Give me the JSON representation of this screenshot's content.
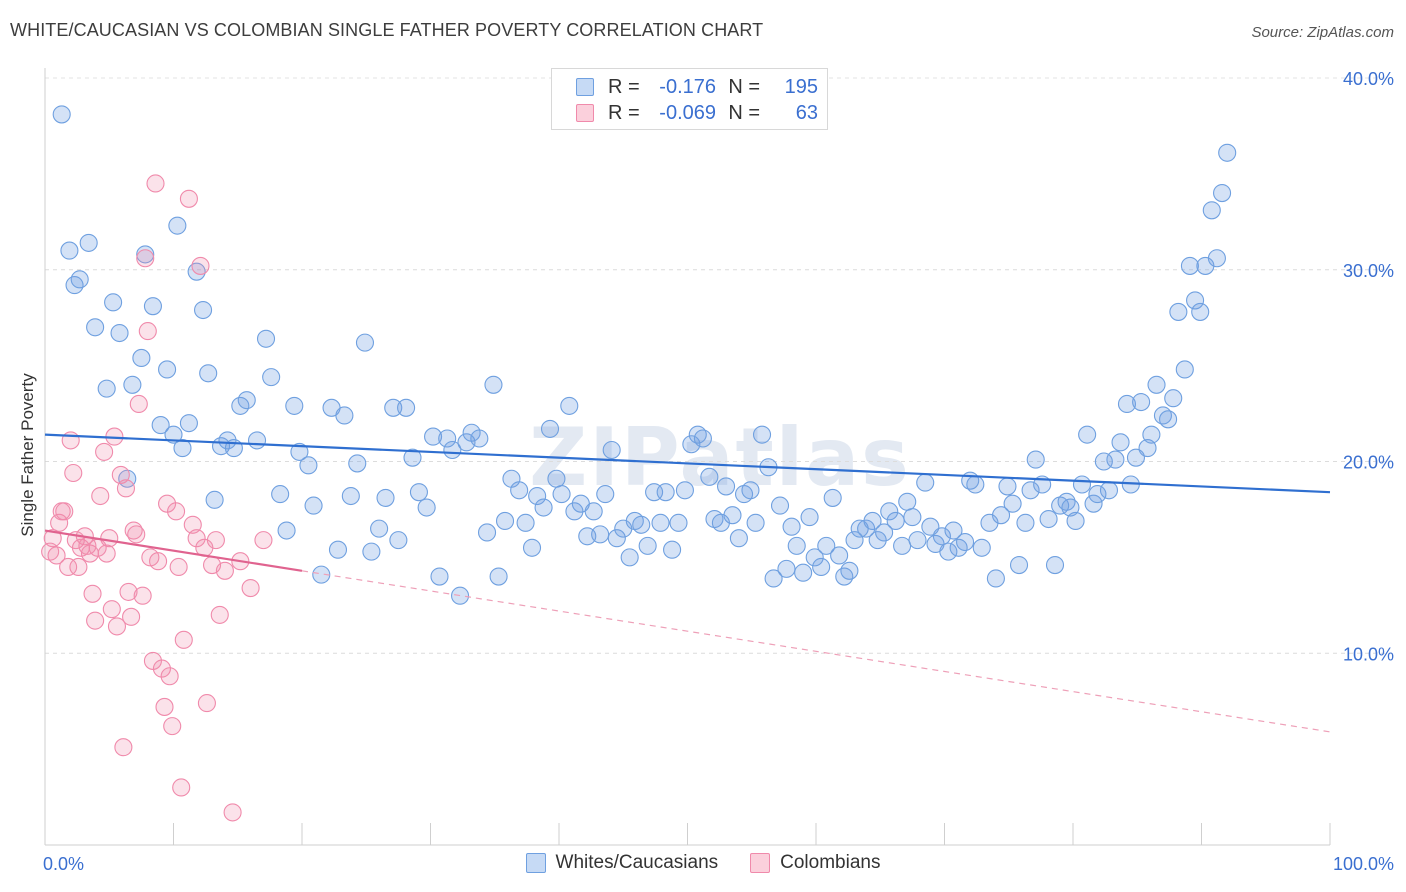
{
  "title": "WHITE/CAUCASIAN VS COLOMBIAN SINGLE FATHER POVERTY CORRELATION CHART",
  "source": "Source: ZipAtlas.com",
  "watermark": "ZIPatlas",
  "legend": {
    "rows": [
      {
        "r_label": "R =",
        "r_value": "-0.176",
        "n_label": "N =",
        "n_value": "195",
        "color": "#6fa0e0"
      },
      {
        "r_label": "R =",
        "r_value": "-0.069",
        "n_label": "N =",
        "n_value": "63",
        "color": "#f08aab"
      }
    ]
  },
  "bottom_legend": [
    "Whites/Caucasians",
    "Colombians"
  ],
  "chart_data": {
    "type": "scatter",
    "title": "WHITE/CAUCASIAN VS COLOMBIAN SINGLE FATHER POVERTY CORRELATION CHART",
    "xlabel": "",
    "ylabel": "Single Father Poverty",
    "xlim": [
      0,
      100
    ],
    "ylim": [
      0,
      40
    ],
    "x_tick_labels": [
      "0.0%",
      "100.0%"
    ],
    "y_ticks": [
      10,
      20,
      30,
      40
    ],
    "y_tick_labels": [
      "10.0%",
      "20.0%",
      "30.0%",
      "40.0%"
    ],
    "grid": true,
    "legend_position": "top-center",
    "series": [
      {
        "name": "Whites/Caucasians",
        "color": "#6fa0e0",
        "trend": {
          "x": [
            0,
            100
          ],
          "y": [
            21.4,
            18.4
          ],
          "style": "solid"
        },
        "points": [
          [
            1.3,
            38.1
          ],
          [
            1.9,
            31.0
          ],
          [
            2.3,
            29.2
          ],
          [
            2.7,
            29.5
          ],
          [
            3.4,
            31.4
          ],
          [
            3.9,
            27.0
          ],
          [
            4.8,
            23.8
          ],
          [
            5.3,
            28.3
          ],
          [
            5.8,
            26.7
          ],
          [
            6.4,
            19.1
          ],
          [
            6.8,
            24.0
          ],
          [
            7.5,
            25.4
          ],
          [
            7.8,
            30.8
          ],
          [
            8.4,
            28.1
          ],
          [
            9.0,
            21.9
          ],
          [
            9.5,
            24.8
          ],
          [
            10.0,
            21.4
          ],
          [
            10.3,
            32.3
          ],
          [
            10.7,
            20.7
          ],
          [
            11.2,
            22.0
          ],
          [
            11.8,
            29.9
          ],
          [
            12.3,
            27.9
          ],
          [
            12.7,
            24.6
          ],
          [
            13.2,
            18.0
          ],
          [
            13.7,
            20.8
          ],
          [
            14.2,
            21.1
          ],
          [
            14.7,
            20.7
          ],
          [
            15.2,
            22.9
          ],
          [
            15.7,
            23.2
          ],
          [
            16.5,
            21.1
          ],
          [
            17.2,
            26.4
          ],
          [
            17.6,
            24.4
          ],
          [
            18.3,
            18.3
          ],
          [
            18.8,
            16.4
          ],
          [
            19.4,
            22.9
          ],
          [
            19.8,
            20.5
          ],
          [
            20.5,
            19.8
          ],
          [
            20.9,
            17.7
          ],
          [
            21.5,
            14.1
          ],
          [
            22.3,
            22.8
          ],
          [
            22.8,
            15.4
          ],
          [
            23.3,
            22.4
          ],
          [
            23.8,
            18.2
          ],
          [
            24.3,
            19.9
          ],
          [
            24.9,
            26.2
          ],
          [
            25.4,
            15.3
          ],
          [
            26.0,
            16.5
          ],
          [
            26.5,
            18.1
          ],
          [
            27.1,
            22.8
          ],
          [
            27.5,
            15.9
          ],
          [
            28.1,
            22.8
          ],
          [
            28.6,
            20.2
          ],
          [
            29.1,
            18.4
          ],
          [
            29.7,
            17.6
          ],
          [
            30.2,
            21.3
          ],
          [
            30.7,
            14.0
          ],
          [
            31.3,
            21.2
          ],
          [
            31.7,
            20.6
          ],
          [
            32.3,
            13.0
          ],
          [
            32.8,
            21.0
          ],
          [
            33.2,
            21.5
          ],
          [
            33.8,
            21.2
          ],
          [
            34.4,
            16.3
          ],
          [
            34.9,
            24.0
          ],
          [
            35.3,
            14.0
          ],
          [
            35.8,
            16.9
          ],
          [
            36.3,
            19.1
          ],
          [
            36.9,
            18.5
          ],
          [
            37.4,
            16.8
          ],
          [
            37.9,
            15.5
          ],
          [
            38.3,
            18.2
          ],
          [
            38.8,
            17.6
          ],
          [
            39.3,
            21.7
          ],
          [
            39.8,
            19.1
          ],
          [
            40.2,
            18.3
          ],
          [
            40.8,
            22.9
          ],
          [
            41.2,
            17.4
          ],
          [
            41.7,
            17.8
          ],
          [
            42.2,
            16.1
          ],
          [
            42.7,
            17.4
          ],
          [
            43.2,
            16.2
          ],
          [
            43.6,
            18.3
          ],
          [
            44.1,
            20.6
          ],
          [
            44.5,
            16.0
          ],
          [
            45.0,
            16.5
          ],
          [
            45.5,
            15.0
          ],
          [
            45.9,
            16.9
          ],
          [
            46.4,
            16.7
          ],
          [
            46.9,
            15.6
          ],
          [
            47.4,
            18.4
          ],
          [
            47.9,
            16.8
          ],
          [
            48.3,
            18.4
          ],
          [
            48.8,
            15.4
          ],
          [
            49.3,
            16.8
          ],
          [
            49.8,
            18.5
          ],
          [
            50.3,
            20.9
          ],
          [
            50.8,
            21.4
          ],
          [
            51.2,
            21.2
          ],
          [
            51.7,
            19.2
          ],
          [
            52.1,
            17.0
          ],
          [
            52.6,
            16.8
          ],
          [
            53.0,
            18.7
          ],
          [
            53.5,
            17.2
          ],
          [
            54.0,
            16.0
          ],
          [
            54.4,
            18.3
          ],
          [
            54.9,
            18.5
          ],
          [
            55.3,
            16.8
          ],
          [
            55.8,
            21.4
          ],
          [
            56.3,
            19.7
          ],
          [
            56.7,
            13.9
          ],
          [
            57.2,
            17.7
          ],
          [
            57.7,
            14.4
          ],
          [
            58.1,
            16.6
          ],
          [
            58.5,
            15.6
          ],
          [
            59.0,
            14.2
          ],
          [
            59.5,
            17.1
          ],
          [
            59.9,
            15.0
          ],
          [
            60.4,
            14.5
          ],
          [
            60.8,
            15.6
          ],
          [
            61.3,
            18.1
          ],
          [
            61.8,
            15.1
          ],
          [
            62.2,
            14.0
          ],
          [
            62.6,
            14.3
          ],
          [
            63.0,
            15.9
          ],
          [
            63.4,
            16.5
          ],
          [
            63.9,
            16.5
          ],
          [
            64.4,
            16.9
          ],
          [
            64.8,
            15.9
          ],
          [
            65.3,
            16.3
          ],
          [
            65.7,
            17.4
          ],
          [
            66.2,
            16.9
          ],
          [
            66.7,
            15.6
          ],
          [
            67.1,
            17.9
          ],
          [
            67.5,
            17.1
          ],
          [
            67.9,
            15.9
          ],
          [
            68.5,
            18.9
          ],
          [
            68.9,
            16.6
          ],
          [
            69.3,
            15.7
          ],
          [
            69.8,
            16.1
          ],
          [
            70.3,
            15.3
          ],
          [
            70.7,
            16.4
          ],
          [
            71.1,
            15.5
          ],
          [
            71.6,
            15.8
          ],
          [
            72.0,
            19.0
          ],
          [
            72.4,
            18.8
          ],
          [
            72.9,
            15.5
          ],
          [
            73.5,
            16.8
          ],
          [
            74.0,
            13.9
          ],
          [
            74.4,
            17.2
          ],
          [
            74.9,
            18.7
          ],
          [
            75.3,
            17.8
          ],
          [
            75.8,
            14.6
          ],
          [
            76.3,
            16.8
          ],
          [
            76.7,
            18.5
          ],
          [
            77.1,
            20.1
          ],
          [
            77.6,
            18.8
          ],
          [
            78.1,
            17.0
          ],
          [
            78.6,
            14.6
          ],
          [
            79.0,
            17.7
          ],
          [
            79.5,
            17.9
          ],
          [
            79.8,
            17.6
          ],
          [
            80.2,
            16.9
          ],
          [
            80.7,
            18.8
          ],
          [
            81.1,
            21.4
          ],
          [
            81.6,
            17.8
          ],
          [
            81.9,
            18.3
          ],
          [
            82.4,
            20.0
          ],
          [
            82.8,
            18.5
          ],
          [
            83.3,
            20.1
          ],
          [
            83.7,
            21.0
          ],
          [
            84.2,
            23.0
          ],
          [
            84.5,
            18.8
          ],
          [
            84.9,
            20.2
          ],
          [
            85.3,
            23.1
          ],
          [
            85.8,
            20.7
          ],
          [
            86.1,
            21.4
          ],
          [
            86.5,
            24.0
          ],
          [
            87.0,
            22.4
          ],
          [
            87.4,
            22.2
          ],
          [
            87.8,
            23.3
          ],
          [
            88.2,
            27.8
          ],
          [
            88.7,
            24.8
          ],
          [
            89.1,
            30.2
          ],
          [
            89.5,
            28.4
          ],
          [
            89.9,
            27.8
          ],
          [
            90.3,
            30.2
          ],
          [
            90.8,
            33.1
          ],
          [
            91.2,
            30.6
          ],
          [
            91.6,
            34.0
          ],
          [
            92.0,
            36.1
          ]
        ]
      },
      {
        "name": "Colombians",
        "color": "#f08aab",
        "trend": {
          "x": [
            0,
            20
          ],
          "y": [
            16.4,
            14.3
          ],
          "style": "solid",
          "dashed_extension": {
            "x": [
              20,
              100
            ],
            "y": [
              14.3,
              5.9
            ]
          }
        },
        "points": [
          [
            0.4,
            15.3
          ],
          [
            0.6,
            16.0
          ],
          [
            0.9,
            15.1
          ],
          [
            1.1,
            16.8
          ],
          [
            1.3,
            17.4
          ],
          [
            1.5,
            17.4
          ],
          [
            1.8,
            14.5
          ],
          [
            2.0,
            21.1
          ],
          [
            2.2,
            19.4
          ],
          [
            2.4,
            15.9
          ],
          [
            2.6,
            14.5
          ],
          [
            2.8,
            15.5
          ],
          [
            3.1,
            16.1
          ],
          [
            3.3,
            15.6
          ],
          [
            3.5,
            15.2
          ],
          [
            3.7,
            13.1
          ],
          [
            3.9,
            11.7
          ],
          [
            4.1,
            15.5
          ],
          [
            4.3,
            18.2
          ],
          [
            4.6,
            20.5
          ],
          [
            4.8,
            15.2
          ],
          [
            5.0,
            16.0
          ],
          [
            5.2,
            12.3
          ],
          [
            5.4,
            21.3
          ],
          [
            5.6,
            11.4
          ],
          [
            5.9,
            19.3
          ],
          [
            6.1,
            5.1
          ],
          [
            6.3,
            18.6
          ],
          [
            6.5,
            13.2
          ],
          [
            6.7,
            11.9
          ],
          [
            6.9,
            16.4
          ],
          [
            7.1,
            16.2
          ],
          [
            7.3,
            23.0
          ],
          [
            7.6,
            13.0
          ],
          [
            7.8,
            30.6
          ],
          [
            8.0,
            26.8
          ],
          [
            8.2,
            15.0
          ],
          [
            8.4,
            9.6
          ],
          [
            8.6,
            34.5
          ],
          [
            8.8,
            14.8
          ],
          [
            9.1,
            9.2
          ],
          [
            9.3,
            7.2
          ],
          [
            9.5,
            17.8
          ],
          [
            9.7,
            8.8
          ],
          [
            9.9,
            6.2
          ],
          [
            10.2,
            17.4
          ],
          [
            10.4,
            14.5
          ],
          [
            10.6,
            3.0
          ],
          [
            10.8,
            10.7
          ],
          [
            11.2,
            33.7
          ],
          [
            11.5,
            16.7
          ],
          [
            11.8,
            16.0
          ],
          [
            12.1,
            30.2
          ],
          [
            12.4,
            15.5
          ],
          [
            12.6,
            7.4
          ],
          [
            13.0,
            14.6
          ],
          [
            13.3,
            15.9
          ],
          [
            13.6,
            12.0
          ],
          [
            14.0,
            14.3
          ],
          [
            14.6,
            1.7
          ],
          [
            15.2,
            14.8
          ],
          [
            16.0,
            13.4
          ],
          [
            17.0,
            15.9
          ]
        ]
      }
    ]
  }
}
